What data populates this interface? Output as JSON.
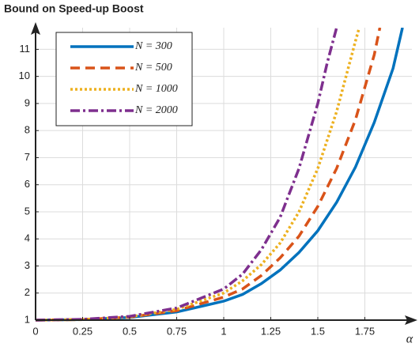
{
  "chart_data": {
    "type": "line",
    "title": "Bound on Speed-up Boost",
    "x_label": "α",
    "xlim": [
      0,
      2
    ],
    "ylim": [
      1,
      11.8
    ],
    "xticks": [
      0,
      0.25,
      0.5,
      0.75,
      1,
      1.25,
      1.5,
      1.75
    ],
    "yticks": [
      1,
      2,
      3,
      4,
      5,
      6,
      7,
      8,
      9,
      10,
      11
    ],
    "grid": true,
    "legend": "upper left",
    "series": [
      {
        "name": "N = 300",
        "color": "#0072bd",
        "dash": "solid",
        "x": [
          0,
          0.25,
          0.5,
          0.75,
          1,
          1.1,
          1.2,
          1.3,
          1.4,
          1.5,
          1.6,
          1.7,
          1.8,
          1.9,
          1.95
        ],
        "values": [
          1,
          1.02,
          1.1,
          1.3,
          1.7,
          1.95,
          2.35,
          2.85,
          3.5,
          4.3,
          5.35,
          6.65,
          8.3,
          10.3,
          11.8
        ]
      },
      {
        "name": "N = 500",
        "color": "#d95319",
        "dash": "dashed",
        "x": [
          0,
          0.25,
          0.5,
          0.75,
          1,
          1.1,
          1.2,
          1.3,
          1.4,
          1.5,
          1.6,
          1.7,
          1.8,
          1.83
        ],
        "values": [
          1,
          1.02,
          1.11,
          1.35,
          1.85,
          2.15,
          2.65,
          3.3,
          4.1,
          5.2,
          6.6,
          8.4,
          10.8,
          11.8
        ]
      },
      {
        "name": "N = 1000",
        "color": "#edb120",
        "dash": "dotted",
        "x": [
          0,
          0.25,
          0.5,
          0.75,
          1,
          1.1,
          1.2,
          1.3,
          1.4,
          1.5,
          1.6,
          1.7,
          1.72
        ],
        "values": [
          1,
          1.02,
          1.12,
          1.4,
          2.0,
          2.45,
          3.05,
          3.85,
          5.0,
          6.6,
          8.7,
          11.3,
          11.8
        ]
      },
      {
        "name": "N = 2000",
        "color": "#7e2f8e",
        "dash": "dashdot",
        "x": [
          0,
          0.25,
          0.5,
          0.75,
          1,
          1.1,
          1.2,
          1.3,
          1.4,
          1.5,
          1.55,
          1.6
        ],
        "values": [
          1,
          1.03,
          1.14,
          1.45,
          2.15,
          2.7,
          3.6,
          4.8,
          6.6,
          9.0,
          10.5,
          11.8
        ]
      }
    ]
  }
}
